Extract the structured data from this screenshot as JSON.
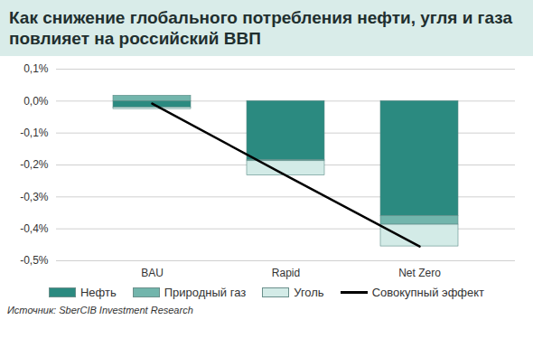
{
  "chart_data": {
    "type": "bar",
    "title": "Как снижение глобального потребления нефти, угля и газа повлияет на российский ВВП",
    "source": "Источник: SberCIB Investment Research",
    "categories": [
      "BAU",
      "Rapid",
      "Net Zero"
    ],
    "stacked": true,
    "grid": true,
    "legend": "bottom",
    "ylim": [
      -0.5,
      0.1
    ],
    "yticks": [
      {
        "value": -0.5,
        "label": "-0,5%"
      },
      {
        "value": -0.4,
        "label": "-0,4%"
      },
      {
        "value": -0.3,
        "label": "-0,3%"
      },
      {
        "value": -0.2,
        "label": "-0,2%"
      },
      {
        "value": -0.1,
        "label": "-0,1%"
      },
      {
        "value": 0,
        "label": "0,0%"
      },
      {
        "value": 0.1,
        "label": "0,1%"
      }
    ],
    "series": [
      {
        "name": "Нефть",
        "color": "#2b8a80",
        "values": [
          -0.02,
          -0.185,
          -0.36
        ]
      },
      {
        "name": "Природный газ",
        "color": "#72b5ac",
        "values": [
          0.017,
          -0.003,
          -0.027
        ]
      },
      {
        "name": "Уголь",
        "color": "#d3ebe7",
        "values": [
          -0.005,
          -0.045,
          -0.068
        ]
      },
      {
        "name": "Совокупный эффект",
        "type": "line",
        "color": "#000000",
        "values": [
          -0.008,
          -0.233,
          -0.455
        ]
      }
    ]
  }
}
